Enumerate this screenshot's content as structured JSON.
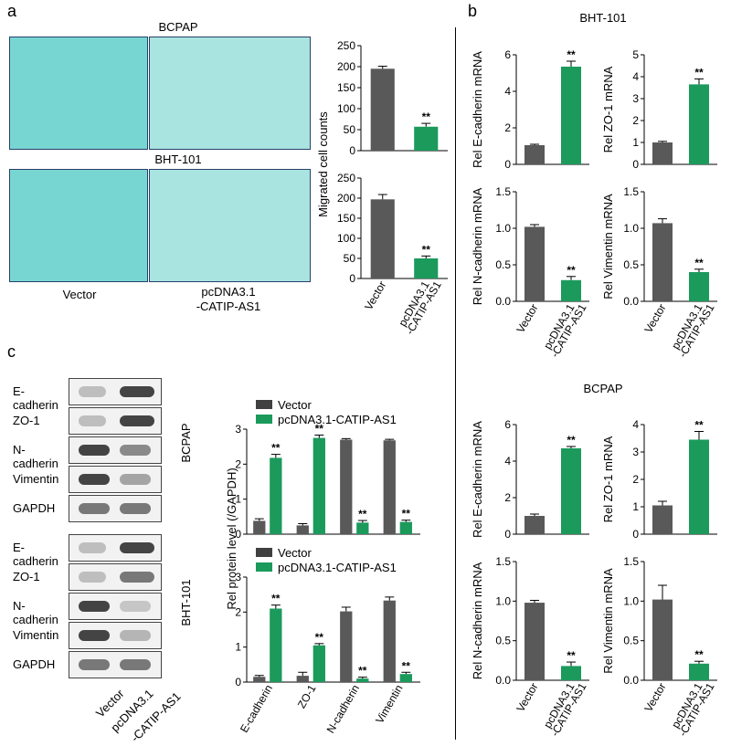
{
  "panel_labels": {
    "a": "a",
    "b": "b",
    "c": "c"
  },
  "panel_a": {
    "cell_lines": [
      "BCPAP",
      "BHT-101"
    ],
    "image_labels": {
      "vector": "Vector",
      "construct_line1": "pcDNA3.1",
      "construct_line2": "-CATIP-AS1"
    },
    "ylabel": "Migrated cell counts"
  },
  "panel_b": {
    "sections": {
      "top": "BHT-101",
      "bottom": "BCPAP"
    }
  },
  "panel_c": {
    "blot_proteins": [
      "E-cadherin",
      "ZO-1",
      "N-cadherin",
      "Vimentin",
      "GAPDH"
    ],
    "blot_groups": [
      "BCPAP",
      "BHT-101"
    ],
    "lane_labels": {
      "vector": "Vector",
      "construct_line1": "pcDNA3.1",
      "construct_line2": "-CATIP-AS1"
    },
    "legend": [
      "Vector",
      "pcDNA3.1-CATIP-AS1"
    ],
    "ylabel": "Rel protein level (/GAPDH)",
    "row_labels": [
      "BCPAP",
      "BHT-101"
    ]
  },
  "colors": {
    "vector": "#595959",
    "construct": "#1b9a5c",
    "legend_vector": "#404040"
  },
  "significance": "**",
  "chart_data": [
    {
      "id": "a_bcpap",
      "type": "bar",
      "categories": [
        "Vector",
        "pcDNA3.1\n-CATIP-AS1"
      ],
      "values": [
        195,
        57
      ],
      "errors": [
        6,
        8
      ],
      "sig": [
        "",
        "**"
      ],
      "ylim": [
        0,
        250
      ],
      "yticks": [
        0,
        50,
        100,
        150,
        200,
        250
      ],
      "ylabel": "Migrated cell counts",
      "show_xlabels": false
    },
    {
      "id": "a_bht",
      "type": "bar",
      "categories": [
        "Vector",
        "pcDNA3.1\n-CATIP-AS1"
      ],
      "values": [
        197,
        50
      ],
      "errors": [
        12,
        6
      ],
      "sig": [
        "",
        "**"
      ],
      "ylim": [
        0,
        250
      ],
      "yticks": [
        0,
        50,
        100,
        150,
        200,
        250
      ],
      "ylabel": "",
      "show_xlabels": true
    },
    {
      "id": "b_bht_ecad",
      "type": "bar",
      "categories": [
        "Vector",
        "pcDNA3.1\n-CATIP-AS1"
      ],
      "values": [
        1.05,
        5.35
      ],
      "errors": [
        0.05,
        0.3
      ],
      "sig": [
        "",
        "**"
      ],
      "ylim": [
        0,
        6
      ],
      "yticks": [
        0,
        2,
        4,
        6
      ],
      "ylabel": "Rel E-cadherin mRNA",
      "show_xlabels": false
    },
    {
      "id": "b_bht_zo1",
      "type": "bar",
      "categories": [
        "Vector",
        "pcDNA3.1\n-CATIP-AS1"
      ],
      "values": [
        1.0,
        3.65
      ],
      "errors": [
        0.05,
        0.25
      ],
      "sig": [
        "",
        "**"
      ],
      "ylim": [
        0,
        5
      ],
      "yticks": [
        0,
        1,
        2,
        3,
        4,
        5
      ],
      "ylabel": "Rel ZO-1 mRNA",
      "show_xlabels": false
    },
    {
      "id": "b_bht_ncad",
      "type": "bar",
      "categories": [
        "Vector",
        "pcDNA3.1\n-CATIP-AS1"
      ],
      "values": [
        1.02,
        0.29
      ],
      "errors": [
        0.03,
        0.05
      ],
      "sig": [
        "",
        "**"
      ],
      "ylim": [
        0,
        1.5
      ],
      "yticks": [
        0,
        0.5,
        1.0,
        1.5
      ],
      "ylabel": "Rel N-cadherin mRNA",
      "show_xlabels": true
    },
    {
      "id": "b_bht_vim",
      "type": "bar",
      "categories": [
        "Vector",
        "pcDNA3.1\n-CATIP-AS1"
      ],
      "values": [
        1.07,
        0.4
      ],
      "errors": [
        0.06,
        0.04
      ],
      "sig": [
        "",
        "**"
      ],
      "ylim": [
        0,
        1.5
      ],
      "yticks": [
        0,
        0.5,
        1.0,
        1.5
      ],
      "ylabel": "Rel Vimentin mRNA",
      "show_xlabels": true
    },
    {
      "id": "b_bcpap_ecad",
      "type": "bar",
      "categories": [
        "Vector",
        "pcDNA3.1\n-CATIP-AS1"
      ],
      "values": [
        1.0,
        4.7
      ],
      "errors": [
        0.1,
        0.1
      ],
      "sig": [
        "",
        "**"
      ],
      "ylim": [
        0,
        6
      ],
      "yticks": [
        0,
        2,
        4,
        6
      ],
      "ylabel": "Rel E-cadherin mRNA",
      "show_xlabels": false
    },
    {
      "id": "b_bcpap_zo1",
      "type": "bar",
      "categories": [
        "Vector",
        "pcDNA3.1\n-CATIP-AS1"
      ],
      "values": [
        1.05,
        3.45
      ],
      "errors": [
        0.15,
        0.3
      ],
      "sig": [
        "",
        "**"
      ],
      "ylim": [
        0,
        4
      ],
      "yticks": [
        0,
        1,
        2,
        3,
        4
      ],
      "ylabel": "Rel ZO-1 mRNA",
      "show_xlabels": false
    },
    {
      "id": "b_bcpap_ncad",
      "type": "bar",
      "categories": [
        "Vector",
        "pcDNA3.1\n-CATIP-AS1"
      ],
      "values": [
        0.98,
        0.18
      ],
      "errors": [
        0.03,
        0.05
      ],
      "sig": [
        "",
        "**"
      ],
      "ylim": [
        0,
        1.5
      ],
      "yticks": [
        0,
        0.5,
        1.0,
        1.5
      ],
      "ylabel": "Rel N-cadherin mRNA",
      "show_xlabels": true
    },
    {
      "id": "b_bcpap_vim",
      "type": "bar",
      "categories": [
        "Vector",
        "pcDNA3.1\n-CATIP-AS1"
      ],
      "values": [
        1.02,
        0.21
      ],
      "errors": [
        0.18,
        0.03
      ],
      "sig": [
        "",
        "**"
      ],
      "ylim": [
        0,
        1.5
      ],
      "yticks": [
        0,
        0.5,
        1.0,
        1.5
      ],
      "ylabel": "Rel Vimentin mRNA",
      "show_xlabels": true
    },
    {
      "id": "c_bcpap",
      "type": "bar",
      "categories": [
        "E-cadherin",
        "ZO-1",
        "N-cadherin",
        "Vimentin"
      ],
      "series": [
        {
          "name": "Vector",
          "values": [
            0.38,
            0.25,
            2.7,
            2.68
          ],
          "errors": [
            0.06,
            0.05,
            0.03,
            0.03
          ]
        },
        {
          "name": "pcDNA3.1-CATIP-AS1",
          "values": [
            2.18,
            2.75,
            0.33,
            0.35
          ],
          "errors": [
            0.1,
            0.08,
            0.06,
            0.05
          ]
        }
      ],
      "sig": [
        "**",
        "**",
        "**",
        "**"
      ],
      "ylim": [
        0,
        3
      ],
      "yticks": [
        0,
        1,
        2,
        3
      ],
      "ylabel": "",
      "show_xlabels": false
    },
    {
      "id": "c_bht",
      "type": "bar",
      "categories": [
        "E-cadherin",
        "ZO-1",
        "N-cadherin",
        "Vimentin"
      ],
      "series": [
        {
          "name": "Vector",
          "values": [
            0.15,
            0.18,
            2.02,
            2.33
          ],
          "errors": [
            0.04,
            0.1,
            0.12,
            0.1
          ]
        },
        {
          "name": "pcDNA3.1-CATIP-AS1",
          "values": [
            2.1,
            1.05,
            0.1,
            0.23
          ],
          "errors": [
            0.1,
            0.05,
            0.04,
            0.05
          ]
        }
      ],
      "sig": [
        "**",
        "**",
        "**",
        "**"
      ],
      "ylim": [
        0,
        3
      ],
      "yticks": [
        0,
        1,
        2,
        3
      ],
      "ylabel": "",
      "show_xlabels": true
    }
  ]
}
